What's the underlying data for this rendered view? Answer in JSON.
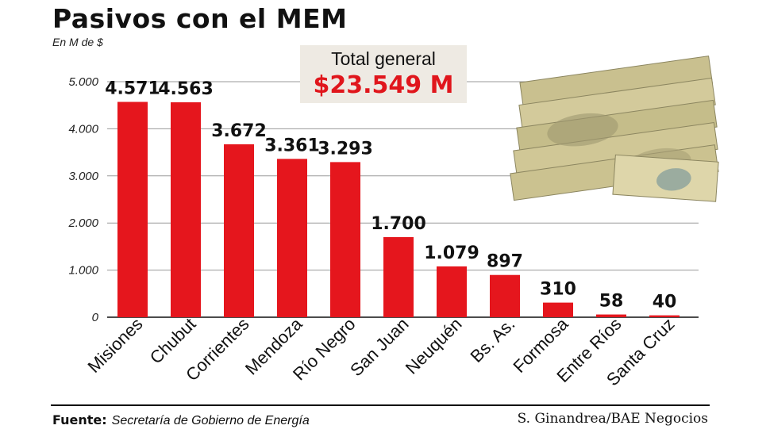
{
  "header": {
    "title": "Pasivos con el MEM",
    "unit": "En M de $"
  },
  "total": {
    "label": "Total general",
    "value": "$23.549 M"
  },
  "footer": {
    "source_label": "Fuente:",
    "source_text": "Secretaría de Gobierno de Energía",
    "credit": "S. Ginandrea/BAE Negocios"
  },
  "colors": {
    "bar": "#e5161d",
    "accent": "#e0161c",
    "grid": "#9a9a9a"
  },
  "chart_data": {
    "type": "bar",
    "title": "Pasivos con el MEM",
    "ylabel": "En M de $",
    "xlabel": "",
    "ylim": [
      0,
      5000
    ],
    "yticks": [
      0,
      1000,
      2000,
      3000,
      4000,
      5000
    ],
    "ytick_labels": [
      "0",
      "1.000",
      "2.000",
      "3.000",
      "4.000",
      "5.000"
    ],
    "grid": true,
    "categories": [
      "Misiones",
      "Chubut",
      "Corrientes",
      "Mendoza",
      "Río Negro",
      "San Juan",
      "Neuquén",
      "Bs. As.",
      "Formosa",
      "Entre Ríos",
      "Santa Cruz"
    ],
    "values": [
      4571,
      4563,
      3672,
      3361,
      3293,
      1700,
      1079,
      897,
      310,
      58,
      40
    ],
    "value_labels": [
      "4.571",
      "4.563",
      "3.672",
      "3.361",
      "3.293",
      "1.700",
      "1.079",
      "897",
      "310",
      "58",
      "40"
    ]
  }
}
